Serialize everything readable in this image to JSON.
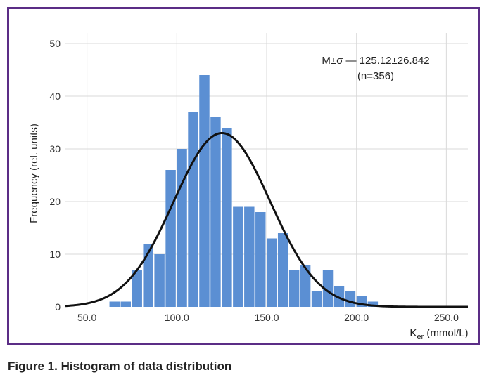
{
  "caption": "Figure 1. Histogram of data distribution",
  "colors": {
    "frame": "#5b2d86",
    "bar": "#5b8fd3",
    "curve": "#111111",
    "grid": "#d9d9d9"
  },
  "chart_data": {
    "type": "bar",
    "title": "",
    "xlabel_main": "K",
    "xlabel_sub": "er",
    "xlabel_rest": " (mmol/L)",
    "ylabel": "Frequency (rel. units)",
    "annotation_line1": "M±σ — 125.12±26.842",
    "annotation_line2": "(n=356)",
    "xlim": [
      38,
      262
    ],
    "ylim": [
      0,
      52
    ],
    "grid": true,
    "x_ticks": [
      {
        "value": 50,
        "label": "50.0"
      },
      {
        "value": 100,
        "label": "100.0"
      },
      {
        "value": 150,
        "label": "150.0"
      },
      {
        "value": 200,
        "label": "200.0"
      },
      {
        "value": 250,
        "label": "250.0"
      }
    ],
    "y_ticks": [
      {
        "value": 0,
        "label": "0"
      },
      {
        "value": 10,
        "label": "10"
      },
      {
        "value": 20,
        "label": "20"
      },
      {
        "value": 30,
        "label": "30"
      },
      {
        "value": 40,
        "label": "40"
      },
      {
        "value": 50,
        "label": "50"
      }
    ],
    "bin_width": 6.25,
    "bin_starts": [
      62.5,
      68.75,
      75,
      81.25,
      87.5,
      93.75,
      100,
      106.25,
      112.5,
      118.75,
      125,
      131.25,
      137.5,
      143.75,
      150,
      156.25,
      162.5,
      168.75,
      175,
      181.25,
      187.5,
      193.75,
      200,
      206.25
    ],
    "values": [
      1,
      1,
      7,
      12,
      10,
      26,
      30,
      37,
      44,
      36,
      34,
      19,
      19,
      18,
      13,
      14,
      7,
      8,
      3,
      7,
      4,
      3,
      2,
      1
    ],
    "normal_curve": {
      "mean": 125.12,
      "sd": 26.842,
      "peak": 33
    }
  }
}
